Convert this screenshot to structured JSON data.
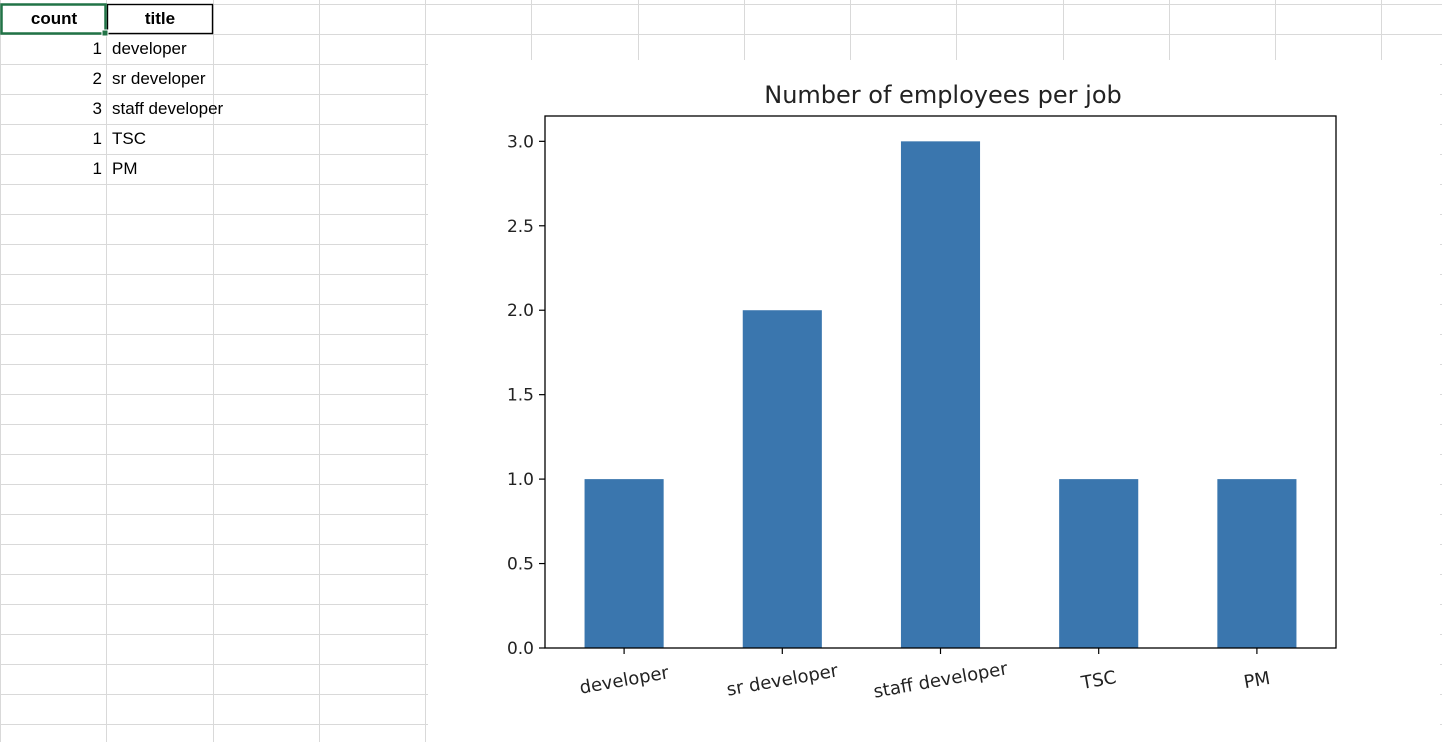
{
  "sheet": {
    "headers": [
      "count",
      "title"
    ],
    "rows": [
      {
        "count": "1",
        "title": "developer"
      },
      {
        "count": "2",
        "title": "sr developer"
      },
      {
        "count": "3",
        "title": "staff developer"
      },
      {
        "count": "1",
        "title": "TSC"
      },
      {
        "count": "1",
        "title": "PM"
      }
    ]
  },
  "colors": {
    "bar": "#3a76ae",
    "gridline": "#d9d9d9",
    "selection": "#217346"
  },
  "chart_data": {
    "type": "bar",
    "title": "Number of employees per job",
    "categories": [
      "developer",
      "sr developer",
      "staff developer",
      "TSC",
      "PM"
    ],
    "values": [
      1,
      2,
      3,
      1,
      1
    ],
    "yticks": [
      "0.0",
      "0.5",
      "1.0",
      "1.5",
      "2.0",
      "2.5",
      "3.0"
    ],
    "ylim": [
      0,
      3.15
    ],
    "xlabel": "",
    "ylabel": "",
    "grid": false,
    "legend": false,
    "xtick_rotation_deg": -10
  }
}
